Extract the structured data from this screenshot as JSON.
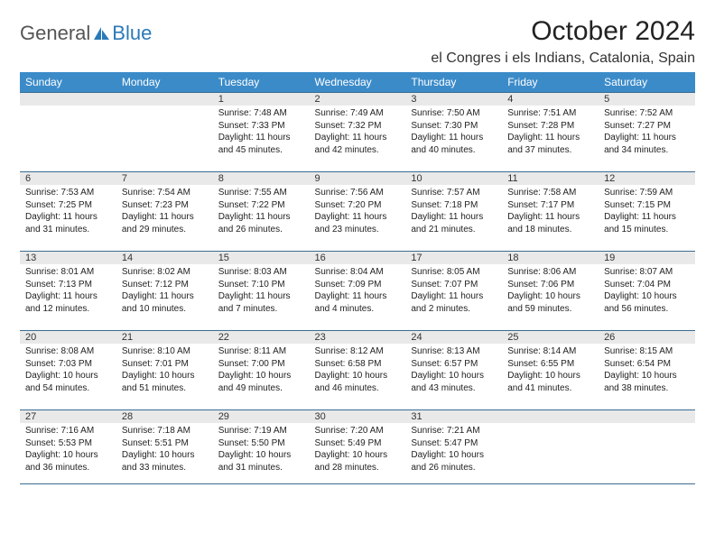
{
  "brand": {
    "word1": "General",
    "word2": "Blue"
  },
  "title": "October 2024",
  "location": "el Congres i els Indians, Catalonia, Spain",
  "colors": {
    "header_bg": "#3b8bc9",
    "header_text": "#ffffff",
    "row_border": "#3b6c91",
    "daynum_bg": "#e9e9e9",
    "brand_accent": "#2a7ab8"
  },
  "day_headers": [
    "Sunday",
    "Monday",
    "Tuesday",
    "Wednesday",
    "Thursday",
    "Friday",
    "Saturday"
  ],
  "weeks": [
    [
      null,
      null,
      {
        "n": "1",
        "sr": "7:48 AM",
        "ss": "7:33 PM",
        "dl": "11 hours and 45 minutes."
      },
      {
        "n": "2",
        "sr": "7:49 AM",
        "ss": "7:32 PM",
        "dl": "11 hours and 42 minutes."
      },
      {
        "n": "3",
        "sr": "7:50 AM",
        "ss": "7:30 PM",
        "dl": "11 hours and 40 minutes."
      },
      {
        "n": "4",
        "sr": "7:51 AM",
        "ss": "7:28 PM",
        "dl": "11 hours and 37 minutes."
      },
      {
        "n": "5",
        "sr": "7:52 AM",
        "ss": "7:27 PM",
        "dl": "11 hours and 34 minutes."
      }
    ],
    [
      {
        "n": "6",
        "sr": "7:53 AM",
        "ss": "7:25 PM",
        "dl": "11 hours and 31 minutes."
      },
      {
        "n": "7",
        "sr": "7:54 AM",
        "ss": "7:23 PM",
        "dl": "11 hours and 29 minutes."
      },
      {
        "n": "8",
        "sr": "7:55 AM",
        "ss": "7:22 PM",
        "dl": "11 hours and 26 minutes."
      },
      {
        "n": "9",
        "sr": "7:56 AM",
        "ss": "7:20 PM",
        "dl": "11 hours and 23 minutes."
      },
      {
        "n": "10",
        "sr": "7:57 AM",
        "ss": "7:18 PM",
        "dl": "11 hours and 21 minutes."
      },
      {
        "n": "11",
        "sr": "7:58 AM",
        "ss": "7:17 PM",
        "dl": "11 hours and 18 minutes."
      },
      {
        "n": "12",
        "sr": "7:59 AM",
        "ss": "7:15 PM",
        "dl": "11 hours and 15 minutes."
      }
    ],
    [
      {
        "n": "13",
        "sr": "8:01 AM",
        "ss": "7:13 PM",
        "dl": "11 hours and 12 minutes."
      },
      {
        "n": "14",
        "sr": "8:02 AM",
        "ss": "7:12 PM",
        "dl": "11 hours and 10 minutes."
      },
      {
        "n": "15",
        "sr": "8:03 AM",
        "ss": "7:10 PM",
        "dl": "11 hours and 7 minutes."
      },
      {
        "n": "16",
        "sr": "8:04 AM",
        "ss": "7:09 PM",
        "dl": "11 hours and 4 minutes."
      },
      {
        "n": "17",
        "sr": "8:05 AM",
        "ss": "7:07 PM",
        "dl": "11 hours and 2 minutes."
      },
      {
        "n": "18",
        "sr": "8:06 AM",
        "ss": "7:06 PM",
        "dl": "10 hours and 59 minutes."
      },
      {
        "n": "19",
        "sr": "8:07 AM",
        "ss": "7:04 PM",
        "dl": "10 hours and 56 minutes."
      }
    ],
    [
      {
        "n": "20",
        "sr": "8:08 AM",
        "ss": "7:03 PM",
        "dl": "10 hours and 54 minutes."
      },
      {
        "n": "21",
        "sr": "8:10 AM",
        "ss": "7:01 PM",
        "dl": "10 hours and 51 minutes."
      },
      {
        "n": "22",
        "sr": "8:11 AM",
        "ss": "7:00 PM",
        "dl": "10 hours and 49 minutes."
      },
      {
        "n": "23",
        "sr": "8:12 AM",
        "ss": "6:58 PM",
        "dl": "10 hours and 46 minutes."
      },
      {
        "n": "24",
        "sr": "8:13 AM",
        "ss": "6:57 PM",
        "dl": "10 hours and 43 minutes."
      },
      {
        "n": "25",
        "sr": "8:14 AM",
        "ss": "6:55 PM",
        "dl": "10 hours and 41 minutes."
      },
      {
        "n": "26",
        "sr": "8:15 AM",
        "ss": "6:54 PM",
        "dl": "10 hours and 38 minutes."
      }
    ],
    [
      {
        "n": "27",
        "sr": "7:16 AM",
        "ss": "5:53 PM",
        "dl": "10 hours and 36 minutes."
      },
      {
        "n": "28",
        "sr": "7:18 AM",
        "ss": "5:51 PM",
        "dl": "10 hours and 33 minutes."
      },
      {
        "n": "29",
        "sr": "7:19 AM",
        "ss": "5:50 PM",
        "dl": "10 hours and 31 minutes."
      },
      {
        "n": "30",
        "sr": "7:20 AM",
        "ss": "5:49 PM",
        "dl": "10 hours and 28 minutes."
      },
      {
        "n": "31",
        "sr": "7:21 AM",
        "ss": "5:47 PM",
        "dl": "10 hours and 26 minutes."
      },
      null,
      null
    ]
  ],
  "labels": {
    "sunrise": "Sunrise:",
    "sunset": "Sunset:",
    "daylight": "Daylight:"
  }
}
